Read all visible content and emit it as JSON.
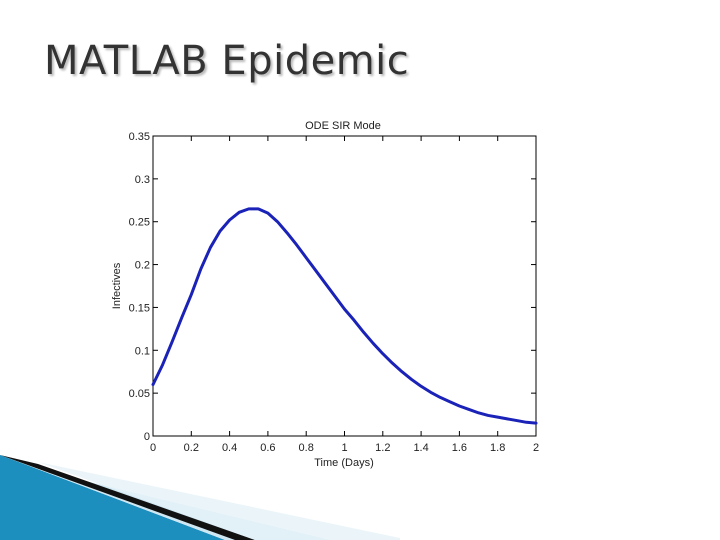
{
  "slide": {
    "title": "MATLAB Epidemic"
  },
  "colors": {
    "line": "#1a22b8",
    "title_text": "#333333",
    "decor_blue": "#1d8fbf",
    "decor_black": "#111111"
  },
  "chart_data": {
    "type": "line",
    "title": "ODE SIR Mode",
    "xlabel": "Time (Days)",
    "ylabel": "Infectives",
    "xlim": [
      0,
      2
    ],
    "ylim": [
      0,
      0.35
    ],
    "xticks": [
      0,
      0.2,
      0.4,
      0.6,
      0.8,
      1,
      1.2,
      1.4,
      1.6,
      1.8,
      2
    ],
    "xtick_labels": [
      "0",
      "0.2",
      "0.4",
      "0.6",
      "0.8",
      "1",
      "1.2",
      "1.4",
      "1.6",
      "1.8",
      "2"
    ],
    "yticks": [
      0,
      0.05,
      0.1,
      0.15,
      0.2,
      0.25,
      0.3,
      0.35
    ],
    "ytick_labels": [
      "0",
      "0.05",
      "0.1",
      "0.15",
      "0.2",
      "0.25",
      "0.3",
      "0.35"
    ],
    "grid": false,
    "series": [
      {
        "x": [
          0,
          0.05,
          0.1,
          0.15,
          0.2,
          0.25,
          0.3,
          0.35,
          0.4,
          0.45,
          0.5,
          0.55,
          0.6,
          0.65,
          0.7,
          0.75,
          0.8,
          0.85,
          0.9,
          0.95,
          1.0,
          1.05,
          1.1,
          1.15,
          1.2,
          1.25,
          1.3,
          1.35,
          1.4,
          1.45,
          1.5,
          1.55,
          1.6,
          1.65,
          1.7,
          1.75,
          1.8,
          1.85,
          1.9,
          1.95,
          2.0
        ],
        "y": [
          0.06,
          0.083,
          0.11,
          0.138,
          0.165,
          0.195,
          0.22,
          0.239,
          0.252,
          0.261,
          0.265,
          0.265,
          0.26,
          0.25,
          0.237,
          0.223,
          0.208,
          0.193,
          0.178,
          0.163,
          0.148,
          0.135,
          0.121,
          0.108,
          0.096,
          0.085,
          0.075,
          0.066,
          0.058,
          0.051,
          0.045,
          0.04,
          0.035,
          0.031,
          0.027,
          0.024,
          0.022,
          0.02,
          0.018,
          0.016,
          0.015
        ]
      }
    ]
  }
}
